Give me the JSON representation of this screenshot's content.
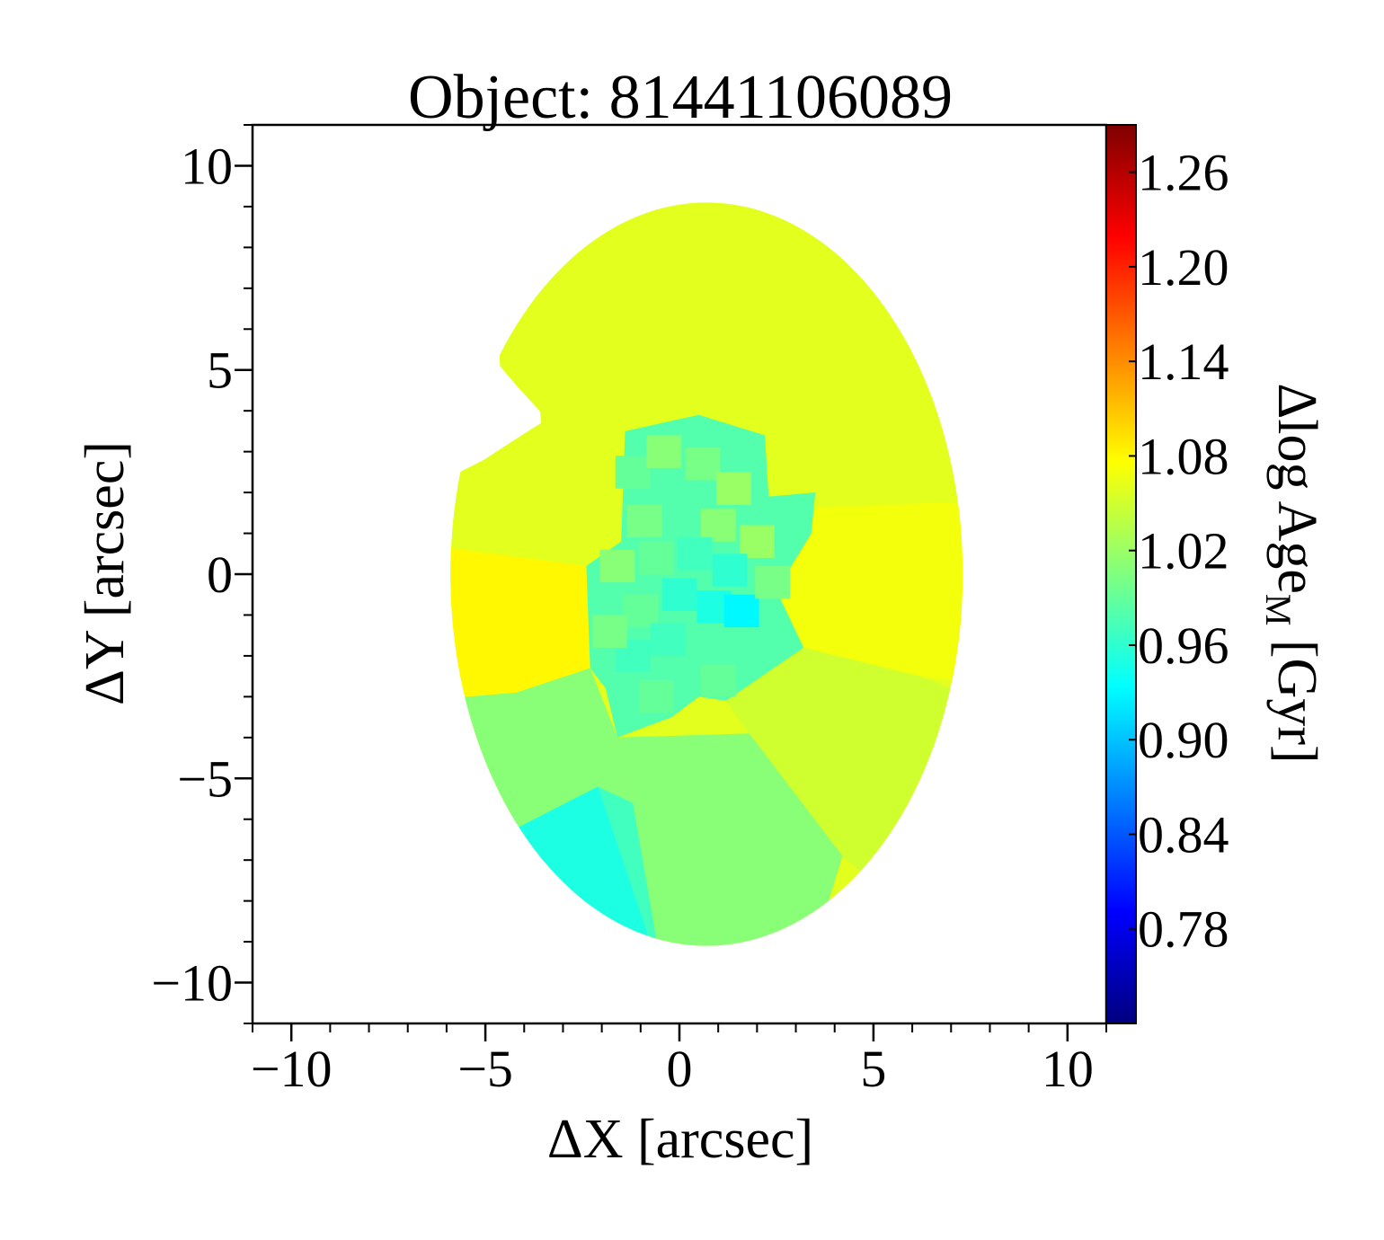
{
  "chart_data": {
    "type": "heatmap",
    "title": "Object: 81441106089",
    "xlabel": "ΔX [arcsec]",
    "ylabel": "ΔY [arcsec]",
    "xlim": [
      -11,
      11
    ],
    "ylim": [
      -11,
      11
    ],
    "x_ticks": [
      {
        "value": -10,
        "label": "−10"
      },
      {
        "value": -5,
        "label": "−5"
      },
      {
        "value": 0,
        "label": "0"
      },
      {
        "value": 5,
        "label": "5"
      },
      {
        "value": 10,
        "label": "10"
      }
    ],
    "y_ticks": [
      {
        "value": 10,
        "label": "10"
      },
      {
        "value": 5,
        "label": "5"
      },
      {
        "value": 0,
        "label": "0"
      },
      {
        "value": -5,
        "label": "−5"
      },
      {
        "value": -10,
        "label": "−10"
      }
    ],
    "colorbar": {
      "label_main": "Δlog Age",
      "label_sub": "M",
      "label_unit": " [Gyr]",
      "colormap": "jet",
      "range": [
        0.72,
        1.29
      ],
      "ticks": [
        "1.26",
        "1.20",
        "1.14",
        "1.08",
        "1.02",
        "0.96",
        "0.90",
        "0.84",
        "0.78"
      ]
    },
    "approximate_regions": [
      {
        "name": "outer north",
        "value": 1.06
      },
      {
        "name": "west",
        "value": 1.08
      },
      {
        "name": "east",
        "value": 1.07
      },
      {
        "name": "center",
        "value": 0.98
      },
      {
        "name": "south-west",
        "value": 0.95
      },
      {
        "name": "south",
        "value": 1.01
      },
      {
        "name": "south-east",
        "value": 1.05
      }
    ]
  }
}
